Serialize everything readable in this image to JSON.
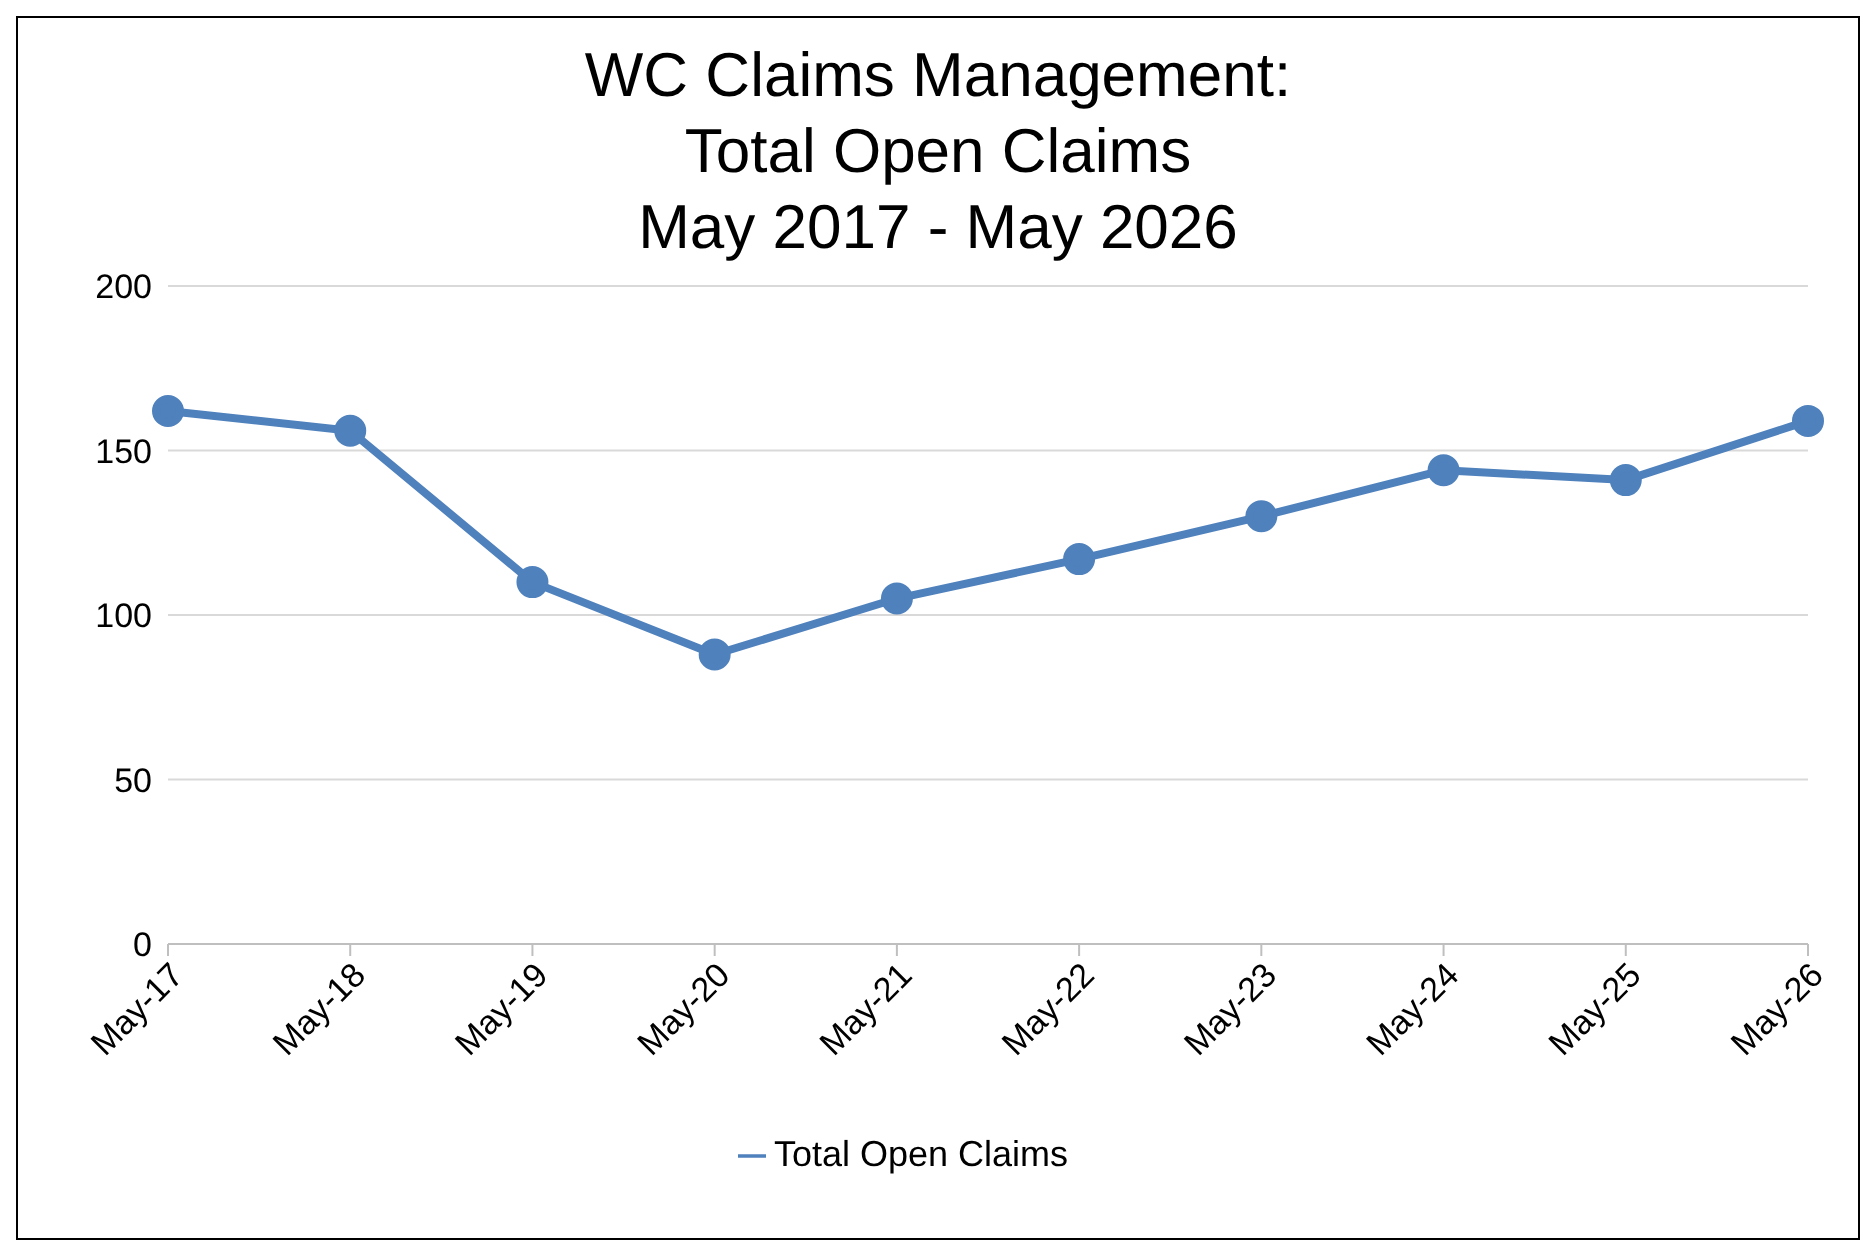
{
  "chart_data": {
    "type": "line",
    "title": "WC Claims Management:\nTotal Open Claims\nMay 2017 - May 2026",
    "categories": [
      "May-17",
      "May-18",
      "May-19",
      "May-20",
      "May-21",
      "May-22",
      "May-23",
      "May-24",
      "May-25",
      "May-26"
    ],
    "series": [
      {
        "name": "Total Open Claims",
        "color": "#4f81bd",
        "values": [
          162,
          156,
          110,
          88,
          105,
          117,
          130,
          144,
          141,
          159
        ]
      }
    ],
    "ylim": [
      0,
      200
    ],
    "yticks": [
      0,
      50,
      100,
      150,
      200
    ],
    "grid": "y",
    "legend": "bottom",
    "marker": "circle",
    "line_style": "solid"
  }
}
